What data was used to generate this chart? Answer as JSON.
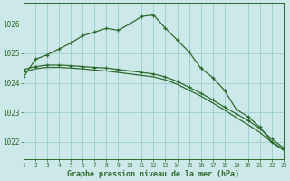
{
  "title": "Graphe pression niveau de la mer (hPa)",
  "background_color": "#cce8e8",
  "grid_color": "#99cccc",
  "line_color": "#2d6a2d",
  "xlim": [
    1,
    23
  ],
  "ylim": [
    1021.4,
    1026.7
  ],
  "yticks": [
    1022,
    1023,
    1024,
    1025,
    1026
  ],
  "ytick_labels": [
    "1022",
    "1023",
    "1024",
    "1025",
    "1026"
  ],
  "xticks": [
    1,
    2,
    3,
    4,
    5,
    6,
    7,
    8,
    9,
    10,
    11,
    12,
    13,
    14,
    15,
    16,
    17,
    18,
    19,
    20,
    21,
    22,
    23
  ],
  "series1_x": [
    1,
    2,
    3,
    4,
    5,
    6,
    7,
    8,
    9,
    10,
    11,
    12,
    13,
    14,
    15,
    16,
    17,
    18,
    19,
    20,
    21,
    22,
    23
  ],
  "series1_y": [
    1024.2,
    1024.8,
    1024.95,
    1025.15,
    1025.35,
    1025.6,
    1025.72,
    1025.85,
    1025.78,
    1026.0,
    1026.25,
    1026.3,
    1025.85,
    1025.45,
    1025.05,
    1024.5,
    1024.18,
    1023.75,
    1023.1,
    1022.85,
    1022.5,
    1022.0,
    1021.75
  ],
  "series2_x": [
    1,
    2,
    3,
    4,
    5,
    6,
    7,
    8,
    9,
    10,
    11,
    12,
    13,
    14,
    15,
    16,
    17,
    18,
    19,
    20,
    21,
    22,
    23
  ],
  "series2_y": [
    1024.45,
    1024.55,
    1024.6,
    1024.6,
    1024.58,
    1024.55,
    1024.52,
    1024.5,
    1024.45,
    1024.4,
    1024.35,
    1024.3,
    1024.2,
    1024.05,
    1023.85,
    1023.65,
    1023.42,
    1023.18,
    1022.95,
    1022.72,
    1022.45,
    1022.1,
    1021.8
  ],
  "series3_x": [
    1,
    2,
    3,
    4,
    5,
    6,
    7,
    8,
    9,
    10,
    11,
    12,
    13,
    14,
    15,
    16,
    17,
    18,
    19,
    20,
    21,
    22,
    23
  ],
  "series3_y": [
    1024.35,
    1024.48,
    1024.52,
    1024.52,
    1024.5,
    1024.47,
    1024.43,
    1024.4,
    1024.35,
    1024.3,
    1024.25,
    1024.2,
    1024.1,
    1023.95,
    1023.75,
    1023.55,
    1023.32,
    1023.08,
    1022.82,
    1022.58,
    1022.32,
    1021.98,
    1021.72
  ]
}
